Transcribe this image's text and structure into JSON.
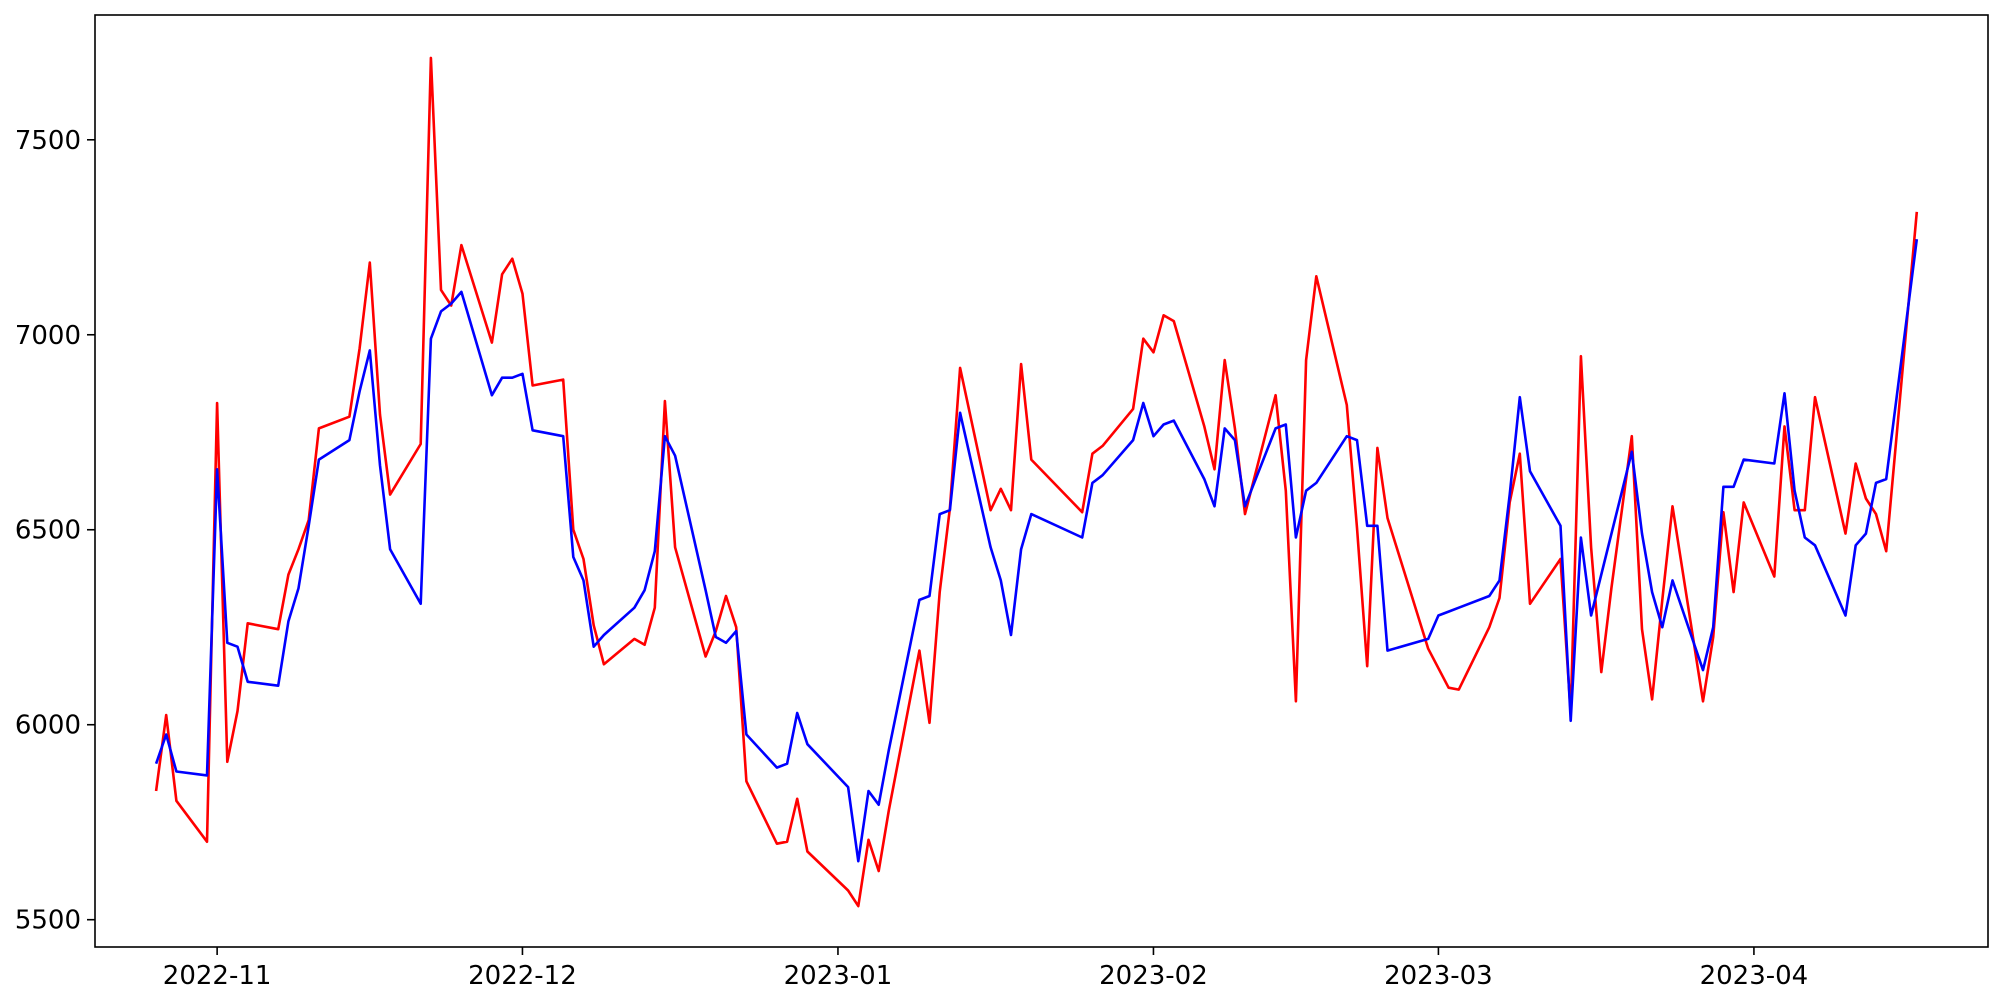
{
  "chart_data": {
    "type": "line",
    "title": "",
    "xlabel": "",
    "ylabel": "",
    "x_ticks": [
      "2022-11",
      "2022-12",
      "2023-01",
      "2023-02",
      "2023-03",
      "2023-04"
    ],
    "x_tick_dates": [
      "2022-11-01",
      "2022-12-01",
      "2023-01-01",
      "2023-02-01",
      "2023-03-01",
      "2023-04-01"
    ],
    "y_ticks": [
      5500,
      6000,
      6500,
      7000,
      7500
    ],
    "y_tick_labels": [
      "5500",
      "6000",
      "6500",
      "7000",
      "7500"
    ],
    "xlim": [
      "2022-10-20",
      "2023-04-24"
    ],
    "ylim": [
      5430,
      7820
    ],
    "grid": false,
    "legend": "none",
    "series": [
      {
        "color": "#ff0000",
        "points": [
          [
            "2022-10-26",
            5830
          ],
          [
            "2022-10-27",
            6025
          ],
          [
            "2022-10-28",
            5805
          ],
          [
            "2022-10-31",
            5700
          ],
          [
            "2022-11-01",
            6825
          ],
          [
            "2022-11-02",
            5905
          ],
          [
            "2022-11-03",
            6035
          ],
          [
            "2022-11-04",
            6260
          ],
          [
            "2022-11-07",
            6245
          ],
          [
            "2022-11-08",
            6385
          ],
          [
            "2022-11-09",
            6450
          ],
          [
            "2022-11-10",
            6525
          ],
          [
            "2022-11-11",
            6760
          ],
          [
            "2022-11-14",
            6790
          ],
          [
            "2022-11-15",
            6965
          ],
          [
            "2022-11-16",
            7185
          ],
          [
            "2022-11-17",
            6795
          ],
          [
            "2022-11-18",
            6590
          ],
          [
            "2022-11-21",
            6720
          ],
          [
            "2022-11-22",
            7710
          ],
          [
            "2022-11-23",
            7115
          ],
          [
            "2022-11-24",
            7075
          ],
          [
            "2022-11-25",
            7230
          ],
          [
            "2022-11-28",
            6980
          ],
          [
            "2022-11-29",
            7155
          ],
          [
            "2022-11-30",
            7195
          ],
          [
            "2022-12-01",
            7105
          ],
          [
            "2022-12-02",
            6870
          ],
          [
            "2022-12-05",
            6885
          ],
          [
            "2022-12-06",
            6500
          ],
          [
            "2022-12-07",
            6425
          ],
          [
            "2022-12-08",
            6255
          ],
          [
            "2022-12-09",
            6155
          ],
          [
            "2022-12-12",
            6220
          ],
          [
            "2022-12-13",
            6205
          ],
          [
            "2022-12-14",
            6300
          ],
          [
            "2022-12-15",
            6830
          ],
          [
            "2022-12-16",
            6455
          ],
          [
            "2022-12-19",
            6175
          ],
          [
            "2022-12-20",
            6240
          ],
          [
            "2022-12-21",
            6330
          ],
          [
            "2022-12-22",
            6250
          ],
          [
            "2022-12-23",
            5855
          ],
          [
            "2022-12-26",
            5695
          ],
          [
            "2022-12-27",
            5700
          ],
          [
            "2022-12-28",
            5810
          ],
          [
            "2022-12-29",
            5675
          ],
          [
            "2023-01-02",
            5575
          ],
          [
            "2023-01-03",
            5535
          ],
          [
            "2023-01-04",
            5705
          ],
          [
            "2023-01-05",
            5625
          ],
          [
            "2023-01-06",
            5780
          ],
          [
            "2023-01-09",
            6190
          ],
          [
            "2023-01-10",
            6005
          ],
          [
            "2023-01-11",
            6340
          ],
          [
            "2023-01-12",
            6555
          ],
          [
            "2023-01-13",
            6915
          ],
          [
            "2023-01-16",
            6550
          ],
          [
            "2023-01-17",
            6605
          ],
          [
            "2023-01-18",
            6550
          ],
          [
            "2023-01-19",
            6925
          ],
          [
            "2023-01-20",
            6680
          ],
          [
            "2023-01-25",
            6545
          ],
          [
            "2023-01-26",
            6695
          ],
          [
            "2023-01-27",
            6715
          ],
          [
            "2023-01-30",
            6810
          ],
          [
            "2023-01-31",
            6990
          ],
          [
            "2023-02-01",
            6955
          ],
          [
            "2023-02-02",
            7050
          ],
          [
            "2023-02-03",
            7035
          ],
          [
            "2023-02-06",
            6765
          ],
          [
            "2023-02-07",
            6655
          ],
          [
            "2023-02-08",
            6935
          ],
          [
            "2023-02-09",
            6760
          ],
          [
            "2023-02-10",
            6540
          ],
          [
            "2023-02-13",
            6845
          ],
          [
            "2023-02-14",
            6600
          ],
          [
            "2023-02-15",
            6060
          ],
          [
            "2023-02-16",
            6935
          ],
          [
            "2023-02-17",
            7150
          ],
          [
            "2023-02-20",
            6820
          ],
          [
            "2023-02-21",
            6505
          ],
          [
            "2023-02-22",
            6150
          ],
          [
            "2023-02-23",
            6710
          ],
          [
            "2023-02-24",
            6530
          ],
          [
            "2023-02-28",
            6195
          ],
          [
            "2023-03-02",
            6095
          ],
          [
            "2023-03-03",
            6090
          ],
          [
            "2023-03-06",
            6250
          ],
          [
            "2023-03-07",
            6325
          ],
          [
            "2023-03-08",
            6570
          ],
          [
            "2023-03-09",
            6695
          ],
          [
            "2023-03-10",
            6310
          ],
          [
            "2023-03-13",
            6425
          ],
          [
            "2023-03-14",
            6030
          ],
          [
            "2023-03-15",
            6945
          ],
          [
            "2023-03-16",
            6455
          ],
          [
            "2023-03-17",
            6135
          ],
          [
            "2023-03-18",
            6350
          ],
          [
            "2023-03-20",
            6740
          ],
          [
            "2023-03-21",
            6245
          ],
          [
            "2023-03-22",
            6065
          ],
          [
            "2023-03-23",
            6320
          ],
          [
            "2023-03-24",
            6560
          ],
          [
            "2023-03-27",
            6060
          ],
          [
            "2023-03-28",
            6225
          ],
          [
            "2023-03-29",
            6545
          ],
          [
            "2023-03-30",
            6340
          ],
          [
            "2023-03-31",
            6570
          ],
          [
            "2023-04-03",
            6380
          ],
          [
            "2023-04-04",
            6765
          ],
          [
            "2023-04-05",
            6550
          ],
          [
            "2023-04-06",
            6550
          ],
          [
            "2023-04-07",
            6840
          ],
          [
            "2023-04-10",
            6490
          ],
          [
            "2023-04-11",
            6670
          ],
          [
            "2023-04-12",
            6580
          ],
          [
            "2023-04-13",
            6540
          ],
          [
            "2023-04-14",
            6445
          ],
          [
            "2023-04-17",
            7315
          ]
        ]
      },
      {
        "color": "#0000ff",
        "points": [
          [
            "2022-10-26",
            5900
          ],
          [
            "2022-10-27",
            5975
          ],
          [
            "2022-10-28",
            5880
          ],
          [
            "2022-10-31",
            5870
          ],
          [
            "2022-11-01",
            6655
          ],
          [
            "2022-11-02",
            6210
          ],
          [
            "2022-11-03",
            6200
          ],
          [
            "2022-11-04",
            6110
          ],
          [
            "2022-11-07",
            6100
          ],
          [
            "2022-11-08",
            6265
          ],
          [
            "2022-11-09",
            6350
          ],
          [
            "2022-11-10",
            6510
          ],
          [
            "2022-11-11",
            6680
          ],
          [
            "2022-11-14",
            6730
          ],
          [
            "2022-11-15",
            6855
          ],
          [
            "2022-11-16",
            6960
          ],
          [
            "2022-11-17",
            6665
          ],
          [
            "2022-11-18",
            6450
          ],
          [
            "2022-11-21",
            6310
          ],
          [
            "2022-11-22",
            6990
          ],
          [
            "2022-11-23",
            7060
          ],
          [
            "2022-11-24",
            7080
          ],
          [
            "2022-11-25",
            7110
          ],
          [
            "2022-11-28",
            6845
          ],
          [
            "2022-11-29",
            6890
          ],
          [
            "2022-11-30",
            6890
          ],
          [
            "2022-12-01",
            6900
          ],
          [
            "2022-12-02",
            6755
          ],
          [
            "2022-12-05",
            6740
          ],
          [
            "2022-12-06",
            6430
          ],
          [
            "2022-12-07",
            6370
          ],
          [
            "2022-12-08",
            6200
          ],
          [
            "2022-12-09",
            6230
          ],
          [
            "2022-12-12",
            6300
          ],
          [
            "2022-12-13",
            6345
          ],
          [
            "2022-12-14",
            6445
          ],
          [
            "2022-12-15",
            6740
          ],
          [
            "2022-12-16",
            6690
          ],
          [
            "2022-12-19",
            6345
          ],
          [
            "2022-12-20",
            6225
          ],
          [
            "2022-12-21",
            6210
          ],
          [
            "2022-12-22",
            6240
          ],
          [
            "2022-12-23",
            5975
          ],
          [
            "2022-12-26",
            5890
          ],
          [
            "2022-12-27",
            5900
          ],
          [
            "2022-12-28",
            6030
          ],
          [
            "2022-12-29",
            5950
          ],
          [
            "2023-01-02",
            5840
          ],
          [
            "2023-01-03",
            5650
          ],
          [
            "2023-01-04",
            5830
          ],
          [
            "2023-01-05",
            5795
          ],
          [
            "2023-01-06",
            5935
          ],
          [
            "2023-01-09",
            6320
          ],
          [
            "2023-01-10",
            6330
          ],
          [
            "2023-01-11",
            6540
          ],
          [
            "2023-01-12",
            6550
          ],
          [
            "2023-01-13",
            6800
          ],
          [
            "2023-01-16",
            6455
          ],
          [
            "2023-01-17",
            6370
          ],
          [
            "2023-01-18",
            6230
          ],
          [
            "2023-01-19",
            6450
          ],
          [
            "2023-01-20",
            6540
          ],
          [
            "2023-01-25",
            6480
          ],
          [
            "2023-01-26",
            6620
          ],
          [
            "2023-01-27",
            6640
          ],
          [
            "2023-01-30",
            6730
          ],
          [
            "2023-01-31",
            6825
          ],
          [
            "2023-02-01",
            6740
          ],
          [
            "2023-02-02",
            6770
          ],
          [
            "2023-02-03",
            6780
          ],
          [
            "2023-02-06",
            6630
          ],
          [
            "2023-02-07",
            6560
          ],
          [
            "2023-02-08",
            6760
          ],
          [
            "2023-02-09",
            6730
          ],
          [
            "2023-02-10",
            6560
          ],
          [
            "2023-02-13",
            6760
          ],
          [
            "2023-02-14",
            6770
          ],
          [
            "2023-02-15",
            6480
          ],
          [
            "2023-02-16",
            6600
          ],
          [
            "2023-02-17",
            6620
          ],
          [
            "2023-02-20",
            6740
          ],
          [
            "2023-02-21",
            6730
          ],
          [
            "2023-02-22",
            6510
          ],
          [
            "2023-02-23",
            6510
          ],
          [
            "2023-02-24",
            6190
          ],
          [
            "2023-02-28",
            6220
          ],
          [
            "2023-03-01",
            6280
          ],
          [
            "2023-03-02",
            6290
          ],
          [
            "2023-03-03",
            6300
          ],
          [
            "2023-03-06",
            6330
          ],
          [
            "2023-03-07",
            6370
          ],
          [
            "2023-03-08",
            6590
          ],
          [
            "2023-03-09",
            6840
          ],
          [
            "2023-03-10",
            6650
          ],
          [
            "2023-03-13",
            6510
          ],
          [
            "2023-03-14",
            6010
          ],
          [
            "2023-03-15",
            6480
          ],
          [
            "2023-03-16",
            6280
          ],
          [
            "2023-03-20",
            6700
          ],
          [
            "2023-03-21",
            6490
          ],
          [
            "2023-03-22",
            6340
          ],
          [
            "2023-03-23",
            6250
          ],
          [
            "2023-03-24",
            6370
          ],
          [
            "2023-03-27",
            6140
          ],
          [
            "2023-03-28",
            6250
          ],
          [
            "2023-03-29",
            6610
          ],
          [
            "2023-03-30",
            6610
          ],
          [
            "2023-03-31",
            6680
          ],
          [
            "2023-04-03",
            6670
          ],
          [
            "2023-04-04",
            6850
          ],
          [
            "2023-04-05",
            6600
          ],
          [
            "2023-04-06",
            6480
          ],
          [
            "2023-04-07",
            6460
          ],
          [
            "2023-04-10",
            6280
          ],
          [
            "2023-04-11",
            6460
          ],
          [
            "2023-04-12",
            6490
          ],
          [
            "2023-04-13",
            6620
          ],
          [
            "2023-04-14",
            6630
          ],
          [
            "2023-04-17",
            7245
          ]
        ]
      }
    ]
  }
}
